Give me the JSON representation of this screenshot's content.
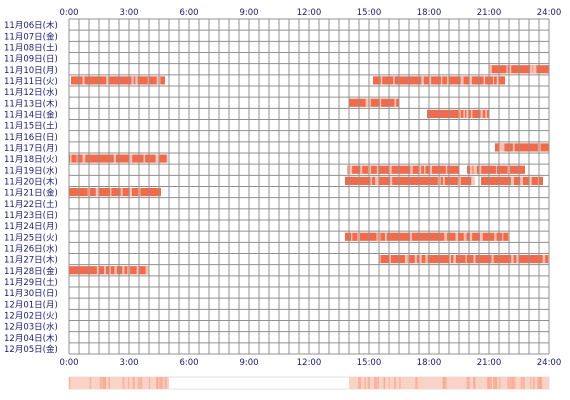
{
  "chart_data": {
    "type": "heatmap",
    "title": "",
    "xlabel": "",
    "ylabel": "",
    "xlim": [
      0,
      24
    ],
    "x_tick_labels": [
      "0:00",
      "3:00",
      "6:00",
      "9:00",
      "12:00",
      "15:00",
      "18:00",
      "21:00",
      "24:00"
    ],
    "grid": true,
    "colors": {
      "active": "#f36a4a",
      "grid": "#909090",
      "tick_text": "#1a1a6a",
      "row_text": "#1a1a6a"
    },
    "rows": [
      {
        "label": "11月06日(木)",
        "intervals": []
      },
      {
        "label": "11月07日(金)",
        "intervals": []
      },
      {
        "label": "11月08日(土)",
        "intervals": []
      },
      {
        "label": "11月09日(日)",
        "intervals": []
      },
      {
        "label": "11月10日(月)",
        "intervals": [
          [
            21.0,
            24.0
          ]
        ]
      },
      {
        "label": "11月11日(火)",
        "intervals": [
          [
            0.1,
            4.8
          ],
          [
            15.2,
            21.8
          ]
        ]
      },
      {
        "label": "11月12日(水)",
        "intervals": []
      },
      {
        "label": "11月13日(木)",
        "intervals": [
          [
            14.0,
            16.5
          ]
        ]
      },
      {
        "label": "11月14日(金)",
        "intervals": [
          [
            17.9,
            21.0
          ]
        ]
      },
      {
        "label": "11月15日(土)",
        "intervals": []
      },
      {
        "label": "11月16日(日)",
        "intervals": []
      },
      {
        "label": "11月17日(月)",
        "intervals": [
          [
            21.3,
            24.0
          ]
        ]
      },
      {
        "label": "11月18日(火)",
        "intervals": [
          [
            0.0,
            4.9
          ]
        ]
      },
      {
        "label": "11月19日(水)",
        "intervals": [
          [
            13.9,
            19.5
          ],
          [
            19.9,
            22.8
          ]
        ]
      },
      {
        "label": "11月20日(木)",
        "intervals": [
          [
            13.8,
            20.2
          ],
          [
            20.6,
            23.7
          ]
        ]
      },
      {
        "label": "11月21日(金)",
        "intervals": [
          [
            0.0,
            4.6
          ]
        ]
      },
      {
        "label": "11月22日(土)",
        "intervals": []
      },
      {
        "label": "11月23日(日)",
        "intervals": []
      },
      {
        "label": "11月24日(月)",
        "intervals": []
      },
      {
        "label": "11月25日(火)",
        "intervals": [
          [
            13.8,
            22.0
          ]
        ]
      },
      {
        "label": "11月26日(水)",
        "intervals": []
      },
      {
        "label": "11月27日(木)",
        "intervals": [
          [
            15.5,
            24.0
          ]
        ]
      },
      {
        "label": "11月28日(金)",
        "intervals": [
          [
            0.0,
            4.0
          ]
        ]
      },
      {
        "label": "11月29日(土)",
        "intervals": []
      },
      {
        "label": "11月30日(日)",
        "intervals": []
      },
      {
        "label": "12月01日(月)",
        "intervals": []
      },
      {
        "label": "12月02日(火)",
        "intervals": []
      },
      {
        "label": "12月03日(水)",
        "intervals": []
      },
      {
        "label": "12月04日(木)",
        "intervals": []
      },
      {
        "label": "12月05日(金)",
        "intervals": []
      }
    ],
    "summary_bar_intervals": [
      [
        0.0,
        5.0
      ],
      [
        14.0,
        24.0
      ]
    ]
  }
}
